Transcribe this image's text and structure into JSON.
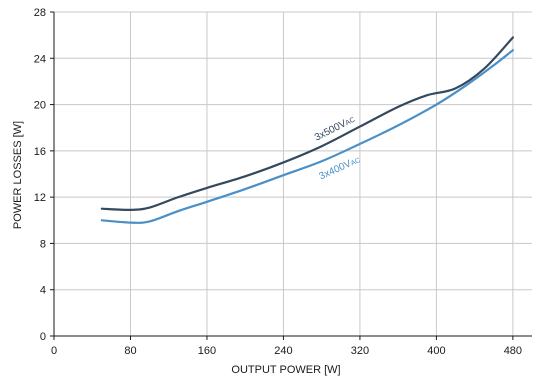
{
  "chart_data": {
    "type": "line",
    "xlabel": "OUTPUT POWER [W]",
    "ylabel": "POWER LOSSES [W]",
    "xlim": [
      0,
      500
    ],
    "ylim": [
      0,
      28
    ],
    "x_ticks": [
      "0",
      "80",
      "160",
      "240",
      "320",
      "400",
      "480"
    ],
    "y_ticks": [
      "0",
      "4",
      "8",
      "12",
      "16",
      "20",
      "24",
      "28"
    ],
    "grid": true,
    "legend": "none (inline curve labels)",
    "series": [
      {
        "name": "3x500VAC",
        "label_main": "3x500V",
        "label_sub": "AC",
        "color": "#34495e",
        "x": [
          50,
          80,
          100,
          130,
          160,
          200,
          240,
          280,
          320,
          360,
          390,
          420,
          450,
          480
        ],
        "y": [
          11.0,
          10.9,
          11.1,
          12.0,
          12.8,
          13.8,
          15.0,
          16.4,
          18.1,
          19.8,
          20.8,
          21.4,
          23.1,
          25.8
        ]
      },
      {
        "name": "3x400VAC",
        "label_main": "3x400V",
        "label_sub": "AC",
        "color": "#4a90c8",
        "x": [
          50,
          80,
          100,
          130,
          160,
          200,
          240,
          280,
          320,
          360,
          400,
          430,
          460,
          480
        ],
        "y": [
          10.0,
          9.8,
          9.9,
          10.8,
          11.6,
          12.7,
          13.9,
          15.1,
          16.6,
          18.2,
          20.0,
          21.6,
          23.4,
          24.7
        ]
      }
    ]
  }
}
